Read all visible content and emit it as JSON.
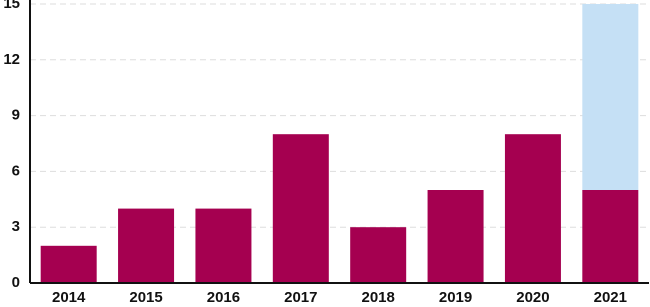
{
  "chart_data": {
    "type": "stacked_bar",
    "categories": [
      "2014",
      "2015",
      "2016",
      "2017",
      "2018",
      "2019",
      "2020",
      "2021"
    ],
    "series": [
      {
        "color": "#a50050",
        "values": [
          2,
          4,
          4,
          8,
          3,
          5,
          8,
          5
        ]
      },
      {
        "color": "#c5e0f5",
        "values": [
          null,
          null,
          null,
          null,
          null,
          null,
          null,
          10
        ]
      }
    ],
    "ylim": [
      0,
      15
    ],
    "yticks": [
      0,
      3,
      6,
      9,
      12,
      15
    ],
    "grid": true
  }
}
